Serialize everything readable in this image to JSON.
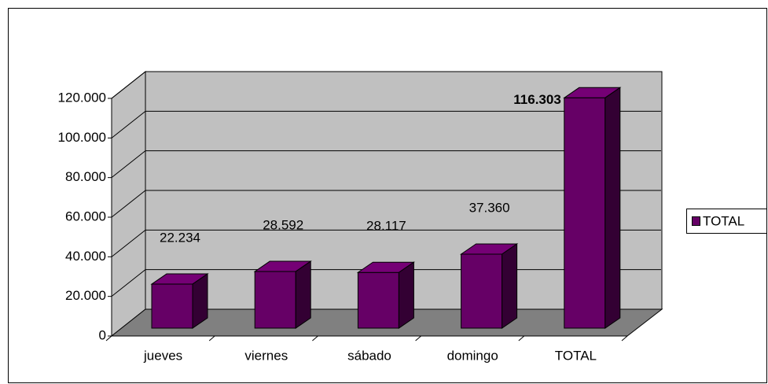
{
  "chart_data": {
    "type": "bar3d",
    "categories": [
      "jueves",
      "viernes",
      "sábado",
      "domingo",
      "TOTAL"
    ],
    "series": [
      {
        "name": "TOTAL",
        "color": "#660066",
        "values": [
          22234,
          28592,
          28117,
          37360,
          116303
        ],
        "value_labels": [
          "22.234",
          "28.592",
          "28.117",
          "37.360",
          "116.303"
        ]
      }
    ],
    "ylim": [
      0,
      120000
    ],
    "yticks": [
      0,
      {
        "value": 20000,
        "label": "20.000"
      },
      {
        "value": 40000,
        "label": "40.000"
      },
      {
        "value": 60000,
        "label": "60.000"
      },
      {
        "value": 80000,
        "label": "80.000"
      },
      {
        "value": 100000,
        "label": "100.000"
      },
      {
        "value": 120000,
        "label": "120.000"
      }
    ],
    "grid": true,
    "legend": "right"
  }
}
